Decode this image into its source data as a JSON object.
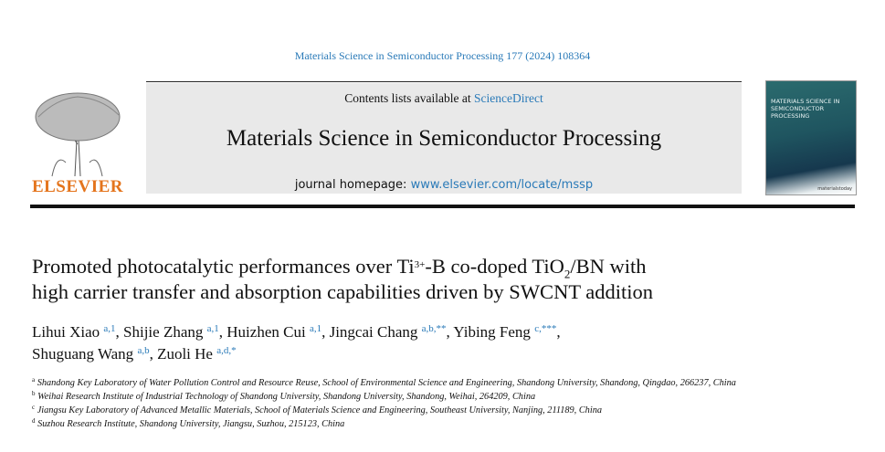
{
  "header": {
    "citation": "Materials Science in Semiconductor Processing 177 (2024) 108364",
    "contents_prefix": "Contents lists available at ",
    "contents_link": "ScienceDirect",
    "journal_title": "Materials Science in Semiconductor Processing",
    "homepage_prefix": "journal homepage: ",
    "homepage_link": "www.elsevier.com/locate/mssp",
    "publisher_logo": "ELSEVIER",
    "cover_title": "MATERIALS SCIENCE IN SEMICONDUCTOR PROCESSING",
    "cover_brand": "materialstoday"
  },
  "article": {
    "title_part1": "Promoted photocatalytic performances over Ti",
    "title_sup": "3+",
    "title_part2": "-B co-doped TiO",
    "title_sub": "2",
    "title_part3": "/BN with",
    "title_line2": "high carrier transfer and absorption capabilities driven by SWCNT addition",
    "authors": [
      {
        "name": "Lihui Xiao",
        "marks": "a,1",
        "sep": ", "
      },
      {
        "name": "Shijie Zhang",
        "marks": "a,1",
        "sep": ", "
      },
      {
        "name": "Huizhen Cui",
        "marks": "a,1",
        "sep": ", "
      },
      {
        "name": "Jingcai Chang",
        "marks": "a,b,**",
        "sep": ", "
      },
      {
        "name": "Yibing Feng",
        "marks": "c,***",
        "sep": ","
      },
      {
        "name": "Shuguang Wang",
        "marks": "a,b",
        "sep": ", "
      },
      {
        "name": "Zuoli He",
        "marks": "a,d,*",
        "sep": ""
      }
    ],
    "affiliations": [
      {
        "mark": "a",
        "text": "Shandong Key Laboratory of Water Pollution Control and Resource Reuse, School of Environmental Science and Engineering, Shandong University, Shandong, Qingdao, 266237, China"
      },
      {
        "mark": "b",
        "text": "Weihai Research Institute of Industrial Technology of Shandong University, Shandong University, Shandong, Weihai, 264209, China"
      },
      {
        "mark": "c",
        "text": "Jiangsu Key Laboratory of Advanced Metallic Materials, School of Materials Science and Engineering, Southeast University, Nanjing, 211189, China"
      },
      {
        "mark": "d",
        "text": "Suzhou Research Institute, Shandong University, Jiangsu, Suzhou, 215123, China"
      }
    ]
  }
}
